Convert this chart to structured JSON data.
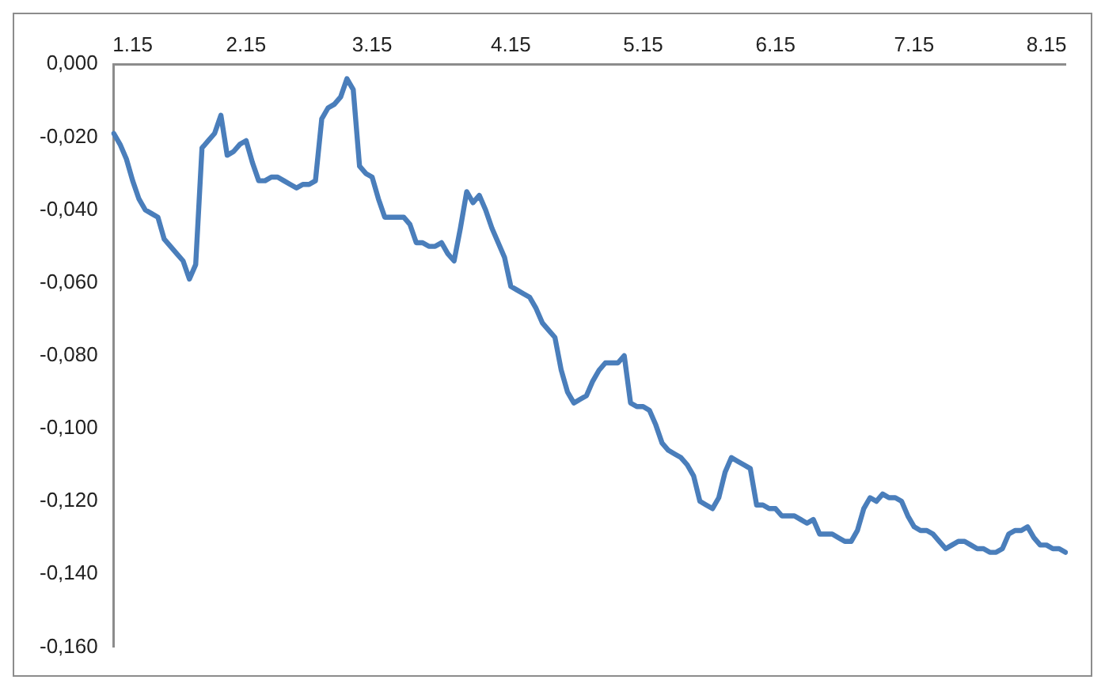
{
  "chart_data": {
    "type": "line",
    "categories": [
      null,
      null,
      null,
      "1.15",
      null,
      null,
      null,
      null,
      null,
      null,
      null,
      null,
      null,
      null,
      null,
      null,
      null,
      null,
      null,
      null,
      null,
      "2.15",
      null,
      null,
      null,
      null,
      null,
      null,
      null,
      null,
      null,
      null,
      null,
      null,
      null,
      null,
      null,
      null,
      null,
      null,
      null,
      "3.15",
      null,
      null,
      null,
      null,
      null,
      null,
      null,
      null,
      null,
      null,
      null,
      null,
      null,
      null,
      null,
      null,
      null,
      null,
      null,
      null,
      null,
      "4.15",
      null,
      null,
      null,
      null,
      null,
      null,
      null,
      null,
      null,
      null,
      null,
      null,
      null,
      null,
      null,
      null,
      null,
      null,
      null,
      null,
      "5.15",
      null,
      null,
      null,
      null,
      null,
      null,
      null,
      null,
      null,
      null,
      null,
      null,
      null,
      null,
      null,
      null,
      null,
      null,
      null,
      null,
      "6.15",
      null,
      null,
      null,
      null,
      null,
      null,
      null,
      null,
      null,
      null,
      null,
      null,
      null,
      null,
      null,
      null,
      null,
      null,
      null,
      null,
      null,
      "7.15",
      null,
      null,
      null,
      null,
      null,
      null,
      null,
      null,
      null,
      null,
      null,
      null,
      null,
      null,
      null,
      null,
      null,
      null,
      null,
      null,
      "8.15",
      null,
      null,
      null
    ],
    "series": [
      {
        "color": "#4a7ebb",
        "values": [
          -0.019,
          -0.022,
          -0.026,
          -0.032,
          -0.037,
          -0.04,
          -0.041,
          -0.042,
          -0.048,
          -0.05,
          -0.052,
          -0.054,
          -0.059,
          -0.055,
          -0.023,
          -0.021,
          -0.019,
          -0.014,
          -0.025,
          -0.024,
          -0.022,
          -0.021,
          -0.027,
          -0.032,
          -0.032,
          -0.031,
          -0.031,
          -0.032,
          -0.033,
          -0.034,
          -0.033,
          -0.033,
          -0.032,
          -0.015,
          -0.012,
          -0.011,
          -0.009,
          -0.004,
          -0.007,
          -0.028,
          -0.03,
          -0.031,
          -0.037,
          -0.042,
          -0.042,
          -0.042,
          -0.042,
          -0.044,
          -0.049,
          -0.049,
          -0.05,
          -0.05,
          -0.049,
          -0.052,
          -0.054,
          -0.045,
          -0.035,
          -0.038,
          -0.036,
          -0.04,
          -0.045,
          -0.049,
          -0.053,
          -0.061,
          -0.062,
          -0.063,
          -0.064,
          -0.067,
          -0.071,
          -0.073,
          -0.075,
          -0.084,
          -0.09,
          -0.093,
          -0.092,
          -0.091,
          -0.087,
          -0.084,
          -0.082,
          -0.082,
          -0.082,
          -0.08,
          -0.093,
          -0.094,
          -0.094,
          -0.095,
          -0.099,
          -0.104,
          -0.106,
          -0.107,
          -0.108,
          -0.11,
          -0.113,
          -0.12,
          -0.121,
          -0.122,
          -0.119,
          -0.112,
          -0.108,
          -0.109,
          -0.11,
          -0.111,
          -0.121,
          -0.121,
          -0.122,
          -0.122,
          -0.124,
          -0.124,
          -0.124,
          -0.125,
          -0.126,
          -0.125,
          -0.129,
          -0.129,
          -0.129,
          -0.13,
          -0.131,
          -0.131,
          -0.128,
          -0.122,
          -0.119,
          -0.12,
          -0.118,
          -0.119,
          -0.119,
          -0.12,
          -0.124,
          -0.127,
          -0.128,
          -0.128,
          -0.129,
          -0.131,
          -0.133,
          -0.132,
          -0.131,
          -0.131,
          -0.132,
          -0.133,
          -0.133,
          -0.134,
          -0.134,
          -0.133,
          -0.129,
          -0.128,
          -0.128,
          -0.127,
          -0.13,
          -0.132,
          -0.132,
          -0.133,
          -0.133,
          -0.134
        ]
      }
    ],
    "ylim": [
      -0.16,
      0
    ],
    "yticks": [
      {
        "value": 0,
        "label": "0,000"
      },
      {
        "value": -0.02,
        "label": "-0,020"
      },
      {
        "value": -0.04,
        "label": "-0,040"
      },
      {
        "value": -0.06,
        "label": "-0,060"
      },
      {
        "value": -0.08,
        "label": "-0,080"
      },
      {
        "value": -0.1,
        "label": "-0,100"
      },
      {
        "value": -0.12,
        "label": "-0,120"
      },
      {
        "value": -0.14,
        "label": "-0,140"
      },
      {
        "value": -0.16,
        "label": "-0,160"
      }
    ],
    "grid": false,
    "legend": false,
    "marker": "none",
    "line_style": "solid"
  }
}
